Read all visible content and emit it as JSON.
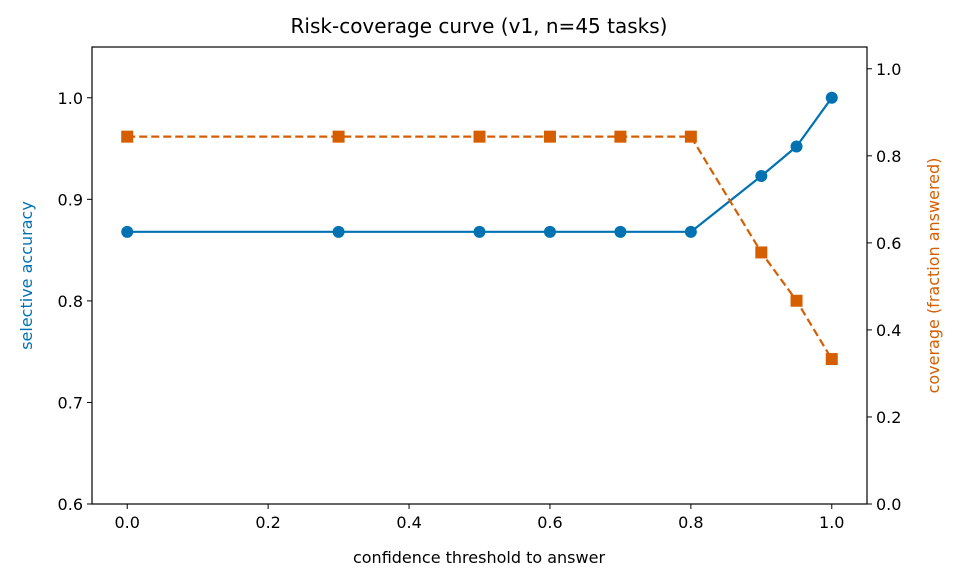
{
  "chart_data": {
    "type": "line",
    "title": "Risk-coverage curve (v1, n=45 tasks)",
    "xlabel": "confidence threshold to answer",
    "ylabel": "selective accuracy",
    "y2label": "coverage (fraction answered)",
    "xlim": [
      -0.05,
      1.05
    ],
    "ylim": [
      0.6,
      1.05
    ],
    "y2lim": [
      0.0,
      1.05
    ],
    "xticks": [
      "0.0",
      "0.2",
      "0.4",
      "0.6",
      "0.8",
      "1.0"
    ],
    "yticks": [
      "0.6",
      "0.7",
      "0.8",
      "0.9",
      "1.0"
    ],
    "y2ticks": [
      "0.0",
      "0.2",
      "0.4",
      "0.6",
      "0.8",
      "1.0"
    ],
    "grid": false,
    "legend": "none",
    "x": [
      0.0,
      0.3,
      0.5,
      0.6,
      0.7,
      0.8,
      0.9,
      0.95,
      1.0
    ],
    "series": [
      {
        "axis": "left",
        "color": "#0072B2",
        "line_style": "solid",
        "marker": "circle",
        "values": [
          0.868,
          0.868,
          0.868,
          0.868,
          0.868,
          0.868,
          0.923,
          0.952,
          1.0
        ]
      },
      {
        "axis": "right",
        "color": "#D55E00",
        "line_style": "dashed",
        "marker": "square",
        "values": [
          0.844,
          0.844,
          0.844,
          0.844,
          0.844,
          0.844,
          0.578,
          0.467,
          0.333
        ]
      }
    ]
  }
}
